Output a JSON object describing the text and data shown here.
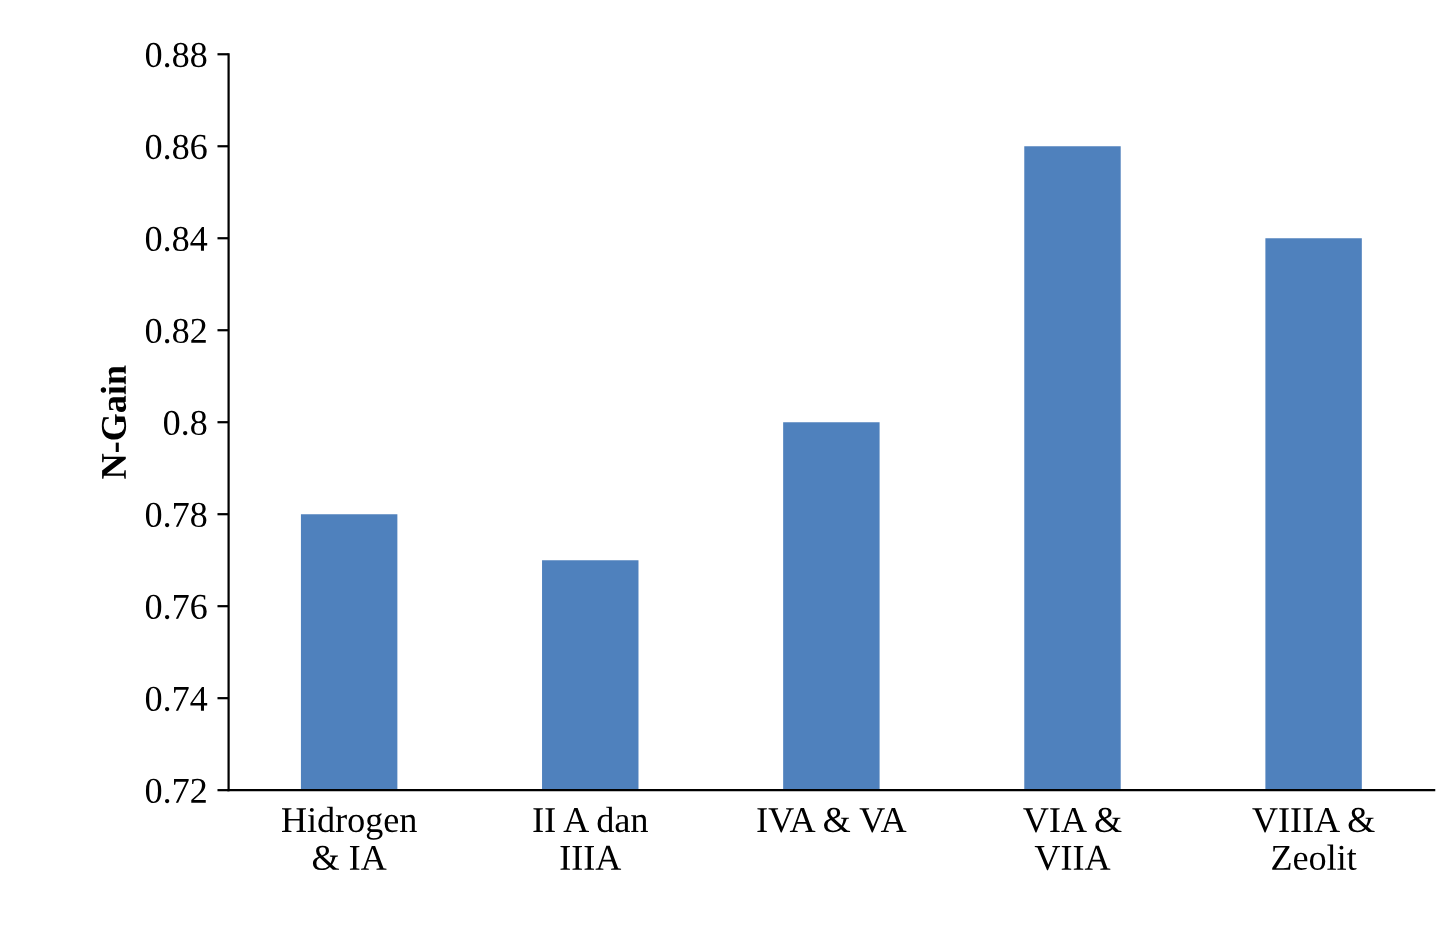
{
  "chart_data": {
    "type": "bar",
    "ylabel": "N-Gain",
    "categories": [
      "Hidrogen\n& IA",
      "II A dan\nIIIA",
      "IVA & VA",
      "VIA &\nVIIA",
      "VIIIA &\nZeolit"
    ],
    "values": [
      0.78,
      0.77,
      0.8,
      0.86,
      0.84
    ],
    "color": "#4f81bd",
    "ylim": [
      0.72,
      0.88
    ],
    "yticks": [
      0.72,
      0.74,
      0.76,
      0.78,
      0.8,
      0.82,
      0.84,
      0.86,
      0.88
    ],
    "grid": false,
    "legend": false
  }
}
